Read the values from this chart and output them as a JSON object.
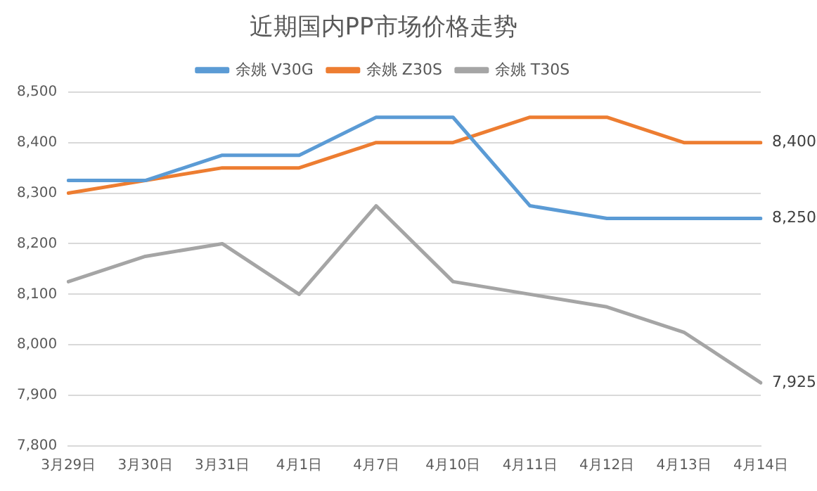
{
  "chart_data": {
    "type": "line",
    "title": "近期国内PP市场价格走势",
    "categories": [
      "3月29日",
      "3月30日",
      "3月31日",
      "4月1日",
      "4月7日",
      "4月10日",
      "4月11日",
      "4月12日",
      "4月13日",
      "4月14日"
    ],
    "series": [
      {
        "name": "余姚 V30G",
        "color": "#5b9bd5",
        "values": [
          8325,
          8325,
          8375,
          8375,
          8450,
          8450,
          8275,
          8250,
          8250,
          8250
        ],
        "value_labels": [
          null,
          null,
          null,
          null,
          null,
          null,
          null,
          null,
          null,
          "8,250"
        ]
      },
      {
        "name": "余姚 Z30S",
        "color": "#ed7d31",
        "values": [
          8300,
          8325,
          8350,
          8350,
          8400,
          8400,
          8450,
          8450,
          8400,
          8400
        ],
        "value_labels": [
          null,
          null,
          null,
          null,
          null,
          null,
          null,
          null,
          null,
          "8,400"
        ]
      },
      {
        "name": "余姚 T30S",
        "color": "#a5a5a5",
        "values": [
          8125,
          8175,
          8200,
          8100,
          8275,
          8125,
          8100,
          8075,
          8025,
          7925
        ],
        "value_labels": [
          null,
          null,
          null,
          null,
          null,
          null,
          null,
          null,
          null,
          "7,925"
        ]
      }
    ],
    "ylim": [
      7800,
      8500
    ],
    "yticks": [
      {
        "value": 7800,
        "label": "7,800"
      },
      {
        "value": 7900,
        "label": "7,900"
      },
      {
        "value": 8000,
        "label": "8,000"
      },
      {
        "value": 8100,
        "label": "8,100"
      },
      {
        "value": 8200,
        "label": "8,200"
      },
      {
        "value": 8300,
        "label": "8,300"
      },
      {
        "value": 8400,
        "label": "8,400"
      },
      {
        "value": 8500,
        "label": "8,500"
      }
    ],
    "grid": "y",
    "legend": "top",
    "marker": "none",
    "line_style": "solid"
  }
}
